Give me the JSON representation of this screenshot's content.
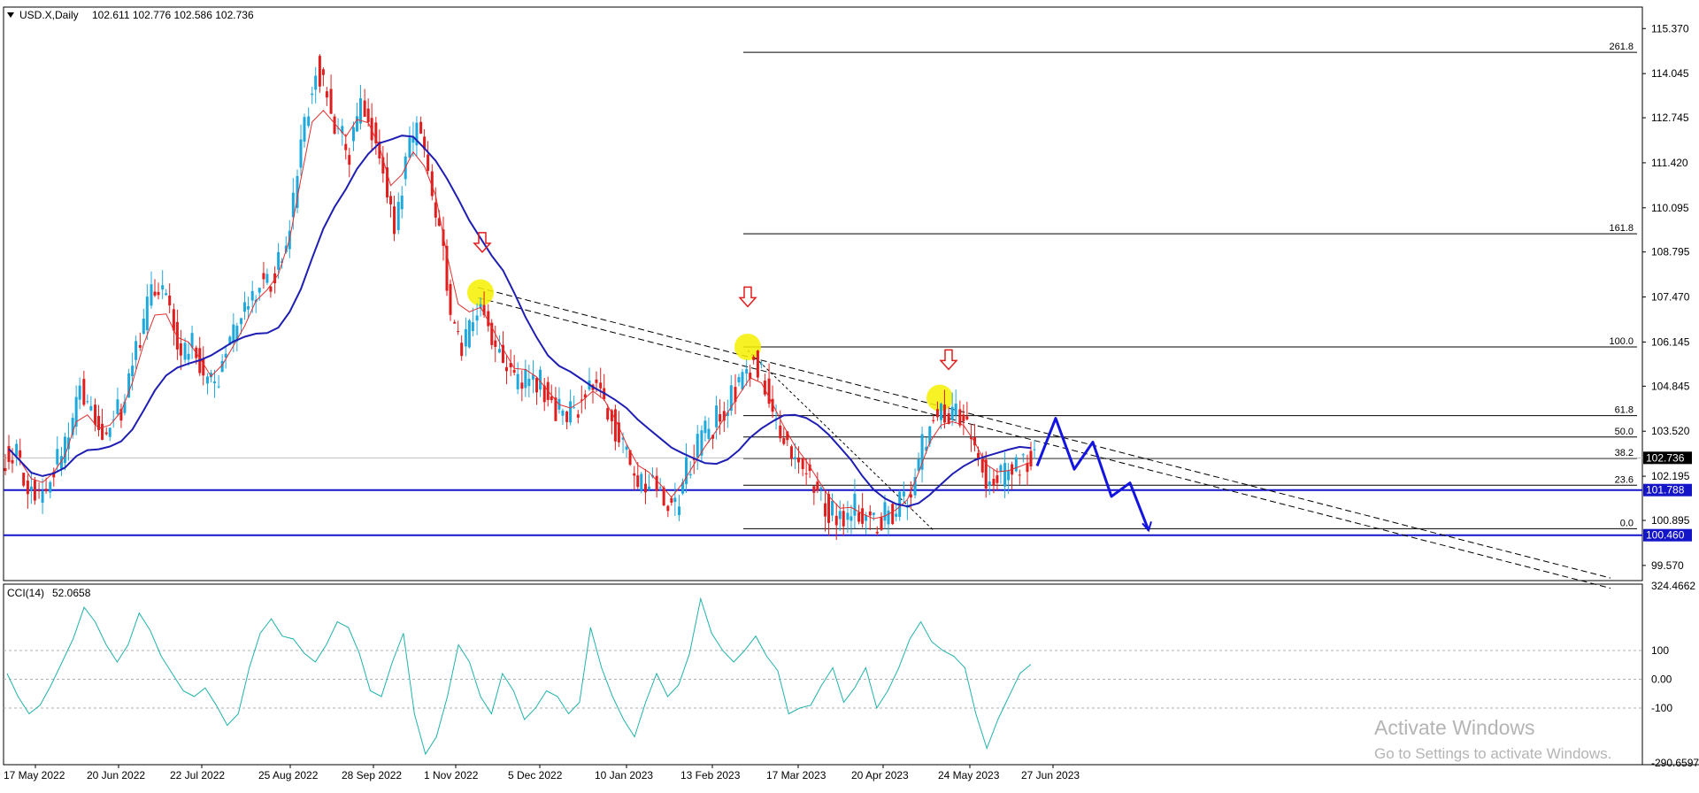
{
  "main_header": {
    "symbol": "USD.X,Daily",
    "ohlc": "102.611 102.776 102.586 102.736"
  },
  "cci_header": {
    "name": "CCI(14)",
    "value": "52.0658"
  },
  "watermark": {
    "line1": "Activate Windows",
    "line2": "Go to Settings to activate Windows."
  },
  "chart_data": {
    "type": "line",
    "title": "USD.X,Daily 102.611 102.776 102.586 102.736",
    "x_tick_labels": [
      "17 May 2022",
      "20 Jun 2022",
      "22 Jul 2022",
      "25 Aug 2022",
      "28 Sep 2022",
      "1 Nov 2022",
      "5 Dec 2022",
      "10 Jan 2023",
      "13 Feb 2023",
      "17 Mar 2023",
      "20 Apr 2023",
      "24 May 2023",
      "27 Jun 2023"
    ],
    "y_tick_labels": [
      "115.370",
      "114.045",
      "112.745",
      "111.420",
      "110.095",
      "108.795",
      "107.470",
      "106.145",
      "104.845",
      "103.520",
      "102.195",
      "100.895",
      "99.570"
    ],
    "ylim": [
      99.15,
      115.95
    ],
    "price_labels": [
      "102.736",
      "101.788",
      "100.460"
    ],
    "price_label_colors": [
      "#000000",
      "#1414c8",
      "#1414c8"
    ],
    "fib_levels": [
      {
        "label": "261.8",
        "price": 114.67
      },
      {
        "label": "161.8",
        "price": 109.33
      },
      {
        "label": "100.0",
        "price": 106.0
      },
      {
        "label": "61.8",
        "price": 103.98
      },
      {
        "label": "50.0",
        "price": 103.35
      },
      {
        "label": "38.2",
        "price": 102.72
      },
      {
        "label": "23.6",
        "price": 101.93
      },
      {
        "label": "0.0",
        "price": 100.65
      }
    ],
    "horizontal_lines": [
      101.788,
      100.46
    ],
    "approx_close_series": [
      103.0,
      102.3,
      101.6,
      101.9,
      102.6,
      103.3,
      104.8,
      104.2,
      103.2,
      103.8,
      104.5,
      105.8,
      107.2,
      107.8,
      107.0,
      105.6,
      106.0,
      105.2,
      104.6,
      105.8,
      106.6,
      107.2,
      108.1,
      108.0,
      108.6,
      110.2,
      112.7,
      114.3,
      113.3,
      112.2,
      111.8,
      113.2,
      112.5,
      111.2,
      109.6,
      111.4,
      112.4,
      110.9,
      109.6,
      107.0,
      105.8,
      106.8,
      107.3,
      106.0,
      105.3,
      104.8,
      105.3,
      104.9,
      104.3,
      103.9,
      104.1,
      104.6,
      105.0,
      104.2,
      103.3,
      102.4,
      101.9,
      102.1,
      101.6,
      101.2,
      102.4,
      103.1,
      103.6,
      104.0,
      104.6,
      105.1,
      105.6,
      104.8,
      103.7,
      103.0,
      102.5,
      102.2,
      101.6,
      101.1,
      100.9,
      101.3,
      100.9,
      100.8,
      101.1,
      101.4,
      101.8,
      103.1,
      104.1,
      104.2,
      103.9,
      103.6,
      102.7,
      101.9,
      102.1,
      102.4,
      102.6,
      102.736
    ],
    "series": [
      {
        "name": "",
        "color": "#e03030"
      },
      {
        "name": "",
        "color": "#1e1eb4"
      }
    ],
    "forecast_path": [
      102.5,
      103.9,
      102.4,
      103.2,
      101.6,
      102.0,
      100.6
    ],
    "cci": {
      "name": "CCI(14)",
      "value": 52.0658,
      "ylim": [
        -290.6597,
        324.4662
      ],
      "tick_labels": [
        "324.4662",
        "100",
        "0.00",
        "-100",
        "-290.6597"
      ],
      "levels": [
        100,
        0,
        -100
      ],
      "approx_values": [
        20,
        -60,
        -120,
        -90,
        -20,
        60,
        140,
        250,
        200,
        120,
        60,
        120,
        230,
        170,
        80,
        20,
        -40,
        -60,
        -30,
        -90,
        -160,
        -120,
        40,
        160,
        210,
        150,
        140,
        90,
        60,
        120,
        200,
        180,
        90,
        -40,
        -60,
        60,
        160,
        -120,
        -260,
        -200,
        -60,
        120,
        60,
        -60,
        -120,
        20,
        -40,
        -140,
        -100,
        -40,
        -60,
        -120,
        -80,
        180,
        40,
        -60,
        -140,
        -200,
        -80,
        20,
        -60,
        -20,
        90,
        280,
        160,
        100,
        60,
        100,
        150,
        80,
        30,
        -120,
        -100,
        -90,
        -20,
        40,
        -80,
        -30,
        40,
        -100,
        -40,
        40,
        140,
        200,
        130,
        100,
        80,
        40,
        -120,
        -240,
        -140,
        -60,
        20,
        52
      ]
    },
    "grid": false,
    "legend": "none"
  }
}
